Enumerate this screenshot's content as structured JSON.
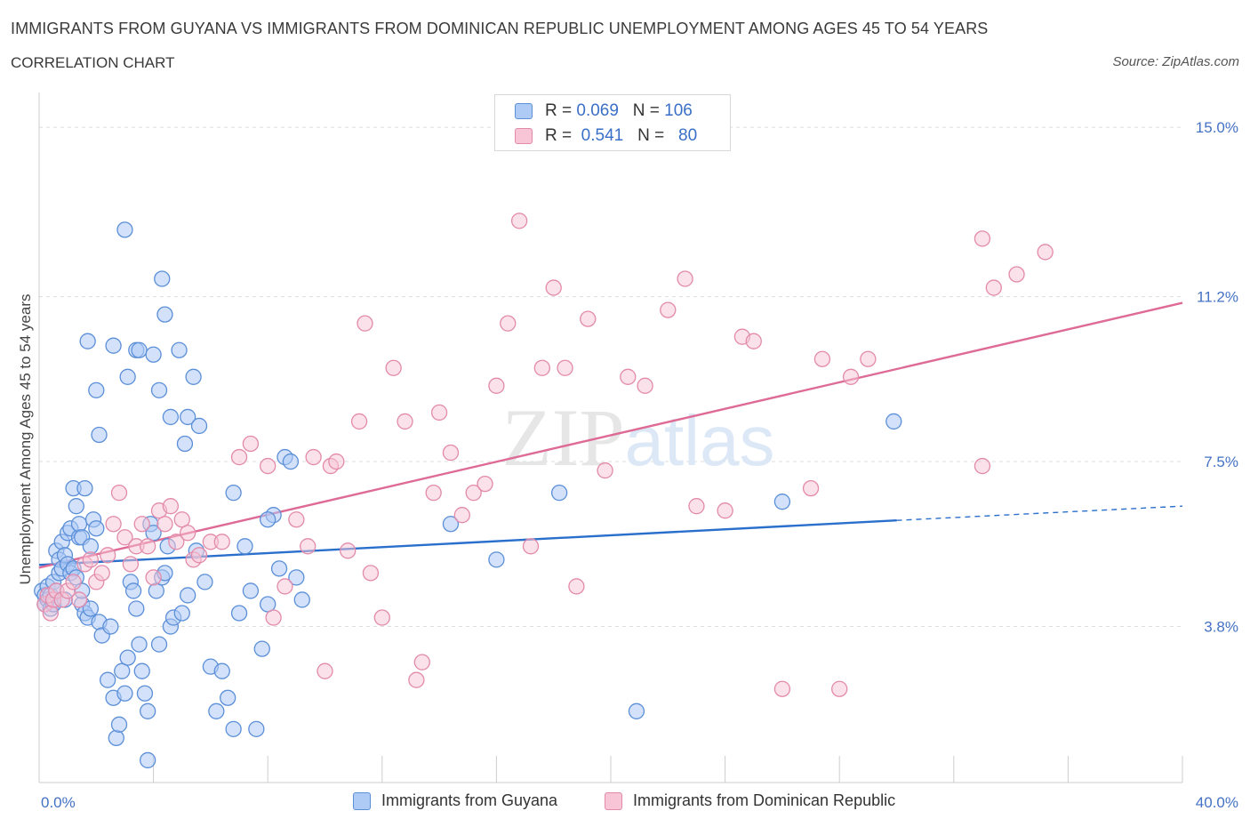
{
  "title": "IMMIGRANTS FROM GUYANA VS IMMIGRANTS FROM DOMINICAN REPUBLIC UNEMPLOYMENT AMONG AGES 45 TO 54 YEARS",
  "subtitle": "CORRELATION CHART",
  "source": "Source: ZipAtlas.com",
  "watermark": "ZIPatlas",
  "legend": {
    "r_label": "R =",
    "n_label": "N =",
    "series1": {
      "r": "0.069",
      "n": "106"
    },
    "series2": {
      "r": "0.541",
      "n": "80"
    }
  },
  "colors": {
    "series1_fill": "#aecbf5",
    "series1_stroke": "#5b8fd8",
    "series1_line": "#2a6fcc",
    "series2_fill": "#f7c5d6",
    "series2_stroke": "#e38aaa",
    "series2_line": "#de6b95",
    "tick_text": "#4472c4",
    "grid": "#dddddd"
  },
  "chart_data": {
    "type": "scatter",
    "title": "IMMIGRANTS FROM GUYANA VS IMMIGRANTS FROM DOMINICAN REPUBLIC UNEMPLOYMENT AMONG AGES 45 TO 54 YEARS",
    "xlabel": "",
    "ylabel": "Unemployment Among Ages 45 to 54 years",
    "xlim": [
      0,
      40
    ],
    "ylim": [
      0.3,
      15.5
    ],
    "x_tick_labels": [
      "0.0%",
      "40.0%"
    ],
    "y_ticks": [
      3.8,
      7.5,
      11.2,
      15.0
    ],
    "y_tick_labels": [
      "3.8%",
      "7.5%",
      "11.2%",
      "15.0%"
    ],
    "grid": "horizontal dashed",
    "legend_position": "top-center",
    "series": [
      {
        "name": "Immigrants from Guyana",
        "r": 0.069,
        "n": 106,
        "trend": {
          "x0": 0,
          "y0": 5.18,
          "x1": 30,
          "y1": 6.18,
          "dashed_to_x": 40,
          "dashed_to_y": 6.5
        },
        "points": [
          [
            0.1,
            4.6
          ],
          [
            0.2,
            4.3
          ],
          [
            0.2,
            4.5
          ],
          [
            0.3,
            4.7
          ],
          [
            0.3,
            4.4
          ],
          [
            0.4,
            4.2
          ],
          [
            0.4,
            4.5
          ],
          [
            0.5,
            4.8
          ],
          [
            0.5,
            4.3
          ],
          [
            0.6,
            5.5
          ],
          [
            0.6,
            4.6
          ],
          [
            0.7,
            5.0
          ],
          [
            0.7,
            5.3
          ],
          [
            0.8,
            5.1
          ],
          [
            0.8,
            5.7
          ],
          [
            0.9,
            5.4
          ],
          [
            0.9,
            4.4
          ],
          [
            1.0,
            5.9
          ],
          [
            1.0,
            5.2
          ],
          [
            1.1,
            5.0
          ],
          [
            1.1,
            6.0
          ],
          [
            1.2,
            6.9
          ],
          [
            1.2,
            5.1
          ],
          [
            1.3,
            6.5
          ],
          [
            1.3,
            4.9
          ],
          [
            1.4,
            5.8
          ],
          [
            1.4,
            6.1
          ],
          [
            1.5,
            5.8
          ],
          [
            1.5,
            4.3
          ],
          [
            1.6,
            6.9
          ],
          [
            1.6,
            4.1
          ],
          [
            1.7,
            4.0
          ],
          [
            1.8,
            5.6
          ],
          [
            1.9,
            6.2
          ],
          [
            2.0,
            6.0
          ],
          [
            2.1,
            3.9
          ],
          [
            2.2,
            3.6
          ],
          [
            2.4,
            2.6
          ],
          [
            2.5,
            3.8
          ],
          [
            2.6,
            2.2
          ],
          [
            2.7,
            1.3
          ],
          [
            2.8,
            1.6
          ],
          [
            2.9,
            2.8
          ],
          [
            3.0,
            2.3
          ],
          [
            3.1,
            3.1
          ],
          [
            3.2,
            4.8
          ],
          [
            3.3,
            4.6
          ],
          [
            3.4,
            4.2
          ],
          [
            3.5,
            3.4
          ],
          [
            3.6,
            2.8
          ],
          [
            3.7,
            2.3
          ],
          [
            3.8,
            1.9
          ],
          [
            3.9,
            6.1
          ],
          [
            4.0,
            5.9
          ],
          [
            4.1,
            4.6
          ],
          [
            4.2,
            3.4
          ],
          [
            4.3,
            4.9
          ],
          [
            4.4,
            5.0
          ],
          [
            4.5,
            5.6
          ],
          [
            4.6,
            3.8
          ],
          [
            4.7,
            4.0
          ],
          [
            5.0,
            4.1
          ],
          [
            5.2,
            4.5
          ],
          [
            5.5,
            5.5
          ],
          [
            5.8,
            4.8
          ],
          [
            6.0,
            2.9
          ],
          [
            6.2,
            1.9
          ],
          [
            6.4,
            2.8
          ],
          [
            6.6,
            2.2
          ],
          [
            6.8,
            1.5
          ],
          [
            7.0,
            4.1
          ],
          [
            7.2,
            5.6
          ],
          [
            7.4,
            4.6
          ],
          [
            7.6,
            1.5
          ],
          [
            7.8,
            3.3
          ],
          [
            8.0,
            4.3
          ],
          [
            8.2,
            6.3
          ],
          [
            8.4,
            5.1
          ],
          [
            8.6,
            7.6
          ],
          [
            8.8,
            7.5
          ],
          [
            9.0,
            4.9
          ],
          [
            9.2,
            4.4
          ],
          [
            1.5,
            4.6
          ],
          [
            1.8,
            4.2
          ],
          [
            2.0,
            9.1
          ],
          [
            2.1,
            8.1
          ],
          [
            1.7,
            10.2
          ],
          [
            2.6,
            10.1
          ],
          [
            3.0,
            12.7
          ],
          [
            3.1,
            9.4
          ],
          [
            3.4,
            10.0
          ],
          [
            3.5,
            10.0
          ],
          [
            3.8,
            0.8
          ],
          [
            4.0,
            9.9
          ],
          [
            4.2,
            9.1
          ],
          [
            4.3,
            11.6
          ],
          [
            4.4,
            10.8
          ],
          [
            4.6,
            8.5
          ],
          [
            4.9,
            10.0
          ],
          [
            5.1,
            7.9
          ],
          [
            5.2,
            8.5
          ],
          [
            5.4,
            9.4
          ],
          [
            5.6,
            8.3
          ],
          [
            6.8,
            6.8
          ],
          [
            8.0,
            6.2
          ],
          [
            14.4,
            6.1
          ],
          [
            16.0,
            5.3
          ],
          [
            18.2,
            6.8
          ],
          [
            20.9,
            1.9
          ],
          [
            26.0,
            6.6
          ],
          [
            29.9,
            8.4
          ]
        ]
      },
      {
        "name": "Immigrants from Dominican Republic",
        "r": 0.541,
        "n": 80,
        "trend": {
          "x0": 0,
          "y0": 5.12,
          "x1": 40,
          "y1": 11.06
        },
        "points": [
          [
            0.2,
            4.3
          ],
          [
            0.3,
            4.5
          ],
          [
            0.4,
            4.1
          ],
          [
            0.5,
            4.4
          ],
          [
            0.6,
            4.6
          ],
          [
            0.8,
            4.4
          ],
          [
            1.0,
            4.6
          ],
          [
            1.2,
            4.8
          ],
          [
            1.4,
            4.4
          ],
          [
            1.6,
            5.2
          ],
          [
            1.8,
            5.3
          ],
          [
            2.0,
            4.8
          ],
          [
            2.2,
            5.0
          ],
          [
            2.4,
            5.4
          ],
          [
            2.6,
            6.1
          ],
          [
            2.8,
            6.8
          ],
          [
            3.0,
            5.8
          ],
          [
            3.2,
            5.2
          ],
          [
            3.4,
            5.6
          ],
          [
            3.6,
            6.1
          ],
          [
            3.8,
            5.6
          ],
          [
            4.0,
            4.9
          ],
          [
            4.2,
            6.4
          ],
          [
            4.4,
            6.1
          ],
          [
            4.6,
            6.5
          ],
          [
            4.8,
            5.7
          ],
          [
            5.0,
            6.2
          ],
          [
            5.2,
            5.9
          ],
          [
            5.4,
            5.3
          ],
          [
            5.6,
            5.4
          ],
          [
            6.0,
            5.7
          ],
          [
            6.4,
            5.7
          ],
          [
            7.0,
            7.6
          ],
          [
            7.4,
            7.9
          ],
          [
            8.0,
            7.4
          ],
          [
            8.2,
            4.0
          ],
          [
            8.6,
            4.7
          ],
          [
            9.0,
            6.2
          ],
          [
            9.4,
            5.6
          ],
          [
            9.6,
            7.6
          ],
          [
            10.0,
            2.8
          ],
          [
            10.2,
            7.4
          ],
          [
            10.4,
            7.5
          ],
          [
            10.8,
            5.5
          ],
          [
            11.2,
            8.4
          ],
          [
            11.4,
            10.6
          ],
          [
            11.6,
            5.0
          ],
          [
            12.0,
            4.0
          ],
          [
            12.4,
            9.6
          ],
          [
            12.8,
            8.4
          ],
          [
            13.2,
            2.6
          ],
          [
            13.4,
            3.0
          ],
          [
            13.8,
            6.8
          ],
          [
            14.0,
            8.6
          ],
          [
            14.4,
            7.7
          ],
          [
            14.8,
            6.3
          ],
          [
            15.2,
            6.8
          ],
          [
            15.6,
            7.0
          ],
          [
            16.0,
            9.2
          ],
          [
            16.4,
            10.6
          ],
          [
            16.8,
            12.9
          ],
          [
            17.2,
            5.6
          ],
          [
            17.6,
            9.6
          ],
          [
            18.0,
            11.4
          ],
          [
            18.4,
            9.6
          ],
          [
            18.8,
            4.7
          ],
          [
            19.2,
            10.7
          ],
          [
            19.8,
            7.3
          ],
          [
            20.6,
            9.4
          ],
          [
            21.2,
            9.2
          ],
          [
            22.0,
            10.9
          ],
          [
            22.6,
            11.6
          ],
          [
            23.0,
            6.5
          ],
          [
            24.0,
            6.4
          ],
          [
            24.6,
            10.3
          ],
          [
            25.0,
            10.2
          ],
          [
            26.0,
            2.4
          ],
          [
            27.0,
            6.9
          ],
          [
            27.4,
            9.8
          ],
          [
            28.0,
            2.4
          ]
        ]
      }
    ],
    "extra_points_series2": [
      [
        28.4,
        9.4
      ],
      [
        29.0,
        9.8
      ],
      [
        33.0,
        7.4
      ],
      [
        33.0,
        12.5
      ],
      [
        33.4,
        11.4
      ],
      [
        34.2,
        11.7
      ],
      [
        35.2,
        12.2
      ]
    ]
  },
  "bottom_legend": {
    "series1_label": "Immigrants from Guyana",
    "series2_label": "Immigrants from Dominican Republic"
  }
}
